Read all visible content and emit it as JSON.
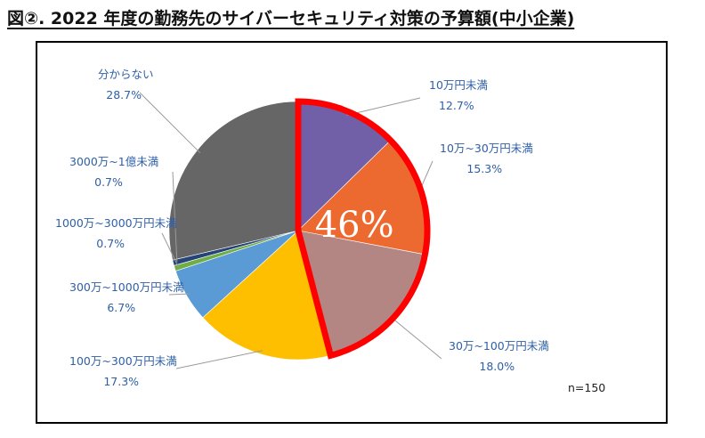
{
  "title": "図②. 2022 年度の勤務先のサイバーセキュリティ対策の予算額(中小企業)",
  "chart_data": {
    "type": "pie",
    "start_angle_deg": 0,
    "direction": "clockwise",
    "slices": [
      {
        "label": "10万円未満",
        "value": 12.7,
        "value_label": "12.7%",
        "color": "#7160a8"
      },
      {
        "label": "10万~30万円未満",
        "value": 15.3,
        "value_label": "15.3%",
        "color": "#ec6a2f"
      },
      {
        "label": "30万~100万円未満",
        "value": 18.0,
        "value_label": "18.0%",
        "color": "#b48683"
      },
      {
        "label": "100万~300万円未満",
        "value": 17.3,
        "value_label": "17.3%",
        "color": "#fdbf00"
      },
      {
        "label": "300万~1000万円未満",
        "value": 6.7,
        "value_label": "6.7%",
        "color": "#5a9bd5"
      },
      {
        "label": "1000万~3000万円未満",
        "value": 0.7,
        "value_label": "0.7%",
        "color": "#70ad47"
      },
      {
        "label": "3000万~1億未満",
        "value": 0.7,
        "value_label": "0.7%",
        "color": "#264478"
      },
      {
        "label": "分からない",
        "value": 28.7,
        "value_label": "28.7%",
        "color": "#666666"
      }
    ],
    "highlight": {
      "text": "46%",
      "slices": [
        0,
        1,
        2
      ],
      "color": "#ff0000"
    },
    "note": "n=150",
    "legend": "none"
  }
}
